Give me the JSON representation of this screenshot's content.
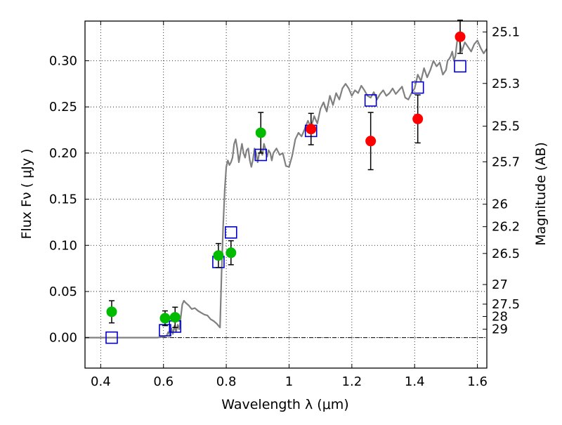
{
  "chart_data": {
    "type": "scatter",
    "x_axis": {
      "label": "Wavelength  λ (μm)",
      "range": [
        0.35,
        1.63
      ],
      "ticks": [
        0.4,
        0.6,
        0.8,
        1.0,
        1.2,
        1.4,
        1.6
      ],
      "tick_labels": [
        "0.4",
        "0.6",
        "0.8",
        "1",
        "1.2",
        "1.4",
        "1.6"
      ]
    },
    "y_axis": {
      "label": "Flux  Fν  ( μJy )",
      "range": [
        -0.033,
        0.343
      ],
      "ticks": [
        0.0,
        0.05,
        0.1,
        0.15,
        0.2,
        0.25,
        0.3
      ],
      "tick_labels": [
        "0.00",
        "0.05",
        "0.10",
        "0.15",
        "0.20",
        "0.25",
        "0.30"
      ]
    },
    "y2_axis": {
      "label": "Magnitude (AB)",
      "scale": "AB magnitude of flux",
      "ticks": [
        25.1,
        25.3,
        25.5,
        25.7,
        26,
        26.2,
        26.5,
        27,
        27.5,
        28,
        29
      ],
      "tick_labels": [
        "25.1",
        "25.3",
        "25.5",
        "25.7",
        "26",
        "26.2",
        "26.5",
        "27",
        "27.5",
        "28",
        "29"
      ]
    },
    "grid": true,
    "zero_line": true,
    "colors": {
      "green": "#00bb00",
      "red": "#ff0000",
      "model_squares": "#0000cc",
      "spectrum": "#808080",
      "error_bars": "#000000"
    },
    "spectrum": {
      "x": [
        0.35,
        0.58,
        0.6,
        0.61,
        0.615,
        0.62,
        0.625,
        0.63,
        0.635,
        0.64,
        0.645,
        0.65,
        0.655,
        0.66,
        0.665,
        0.67,
        0.68,
        0.69,
        0.7,
        0.71,
        0.72,
        0.73,
        0.74,
        0.75,
        0.76,
        0.77,
        0.775,
        0.78,
        0.785,
        0.79,
        0.795,
        0.8,
        0.805,
        0.81,
        0.815,
        0.82,
        0.825,
        0.83,
        0.835,
        0.84,
        0.845,
        0.85,
        0.855,
        0.86,
        0.865,
        0.87,
        0.875,
        0.88,
        0.885,
        0.89,
        0.895,
        0.9,
        0.905,
        0.91,
        0.915,
        0.92,
        0.925,
        0.93,
        0.935,
        0.94,
        0.945,
        0.95,
        0.96,
        0.97,
        0.98,
        0.99,
        1.0,
        1.01,
        1.02,
        1.03,
        1.04,
        1.05,
        1.06,
        1.07,
        1.08,
        1.09,
        1.1,
        1.11,
        1.12,
        1.13,
        1.14,
        1.15,
        1.16,
        1.17,
        1.18,
        1.19,
        1.2,
        1.21,
        1.22,
        1.23,
        1.24,
        1.25,
        1.26,
        1.27,
        1.28,
        1.29,
        1.3,
        1.31,
        1.32,
        1.33,
        1.34,
        1.35,
        1.36,
        1.37,
        1.38,
        1.39,
        1.4,
        1.41,
        1.42,
        1.43,
        1.44,
        1.45,
        1.46,
        1.47,
        1.48,
        1.49,
        1.5,
        1.505,
        1.51,
        1.515,
        1.52,
        1.525,
        1.53,
        1.535,
        1.54,
        1.545,
        1.55,
        1.56,
        1.57,
        1.58,
        1.59,
        1.6,
        1.61,
        1.62,
        1.63
      ],
      "y": [
        0.0,
        0.0,
        0.001,
        0.002,
        0.006,
        0.003,
        0.01,
        0.004,
        0.013,
        0.006,
        0.014,
        0.009,
        0.022,
        0.036,
        0.04,
        0.038,
        0.035,
        0.031,
        0.032,
        0.029,
        0.027,
        0.025,
        0.024,
        0.02,
        0.018,
        0.015,
        0.013,
        0.011,
        0.07,
        0.12,
        0.16,
        0.185,
        0.192,
        0.187,
        0.19,
        0.195,
        0.21,
        0.215,
        0.205,
        0.19,
        0.2,
        0.21,
        0.2,
        0.195,
        0.203,
        0.205,
        0.192,
        0.185,
        0.193,
        0.205,
        0.2,
        0.19,
        0.2,
        0.203,
        0.198,
        0.21,
        0.204,
        0.196,
        0.203,
        0.2,
        0.192,
        0.2,
        0.205,
        0.198,
        0.2,
        0.186,
        0.185,
        0.197,
        0.215,
        0.222,
        0.218,
        0.226,
        0.235,
        0.228,
        0.24,
        0.232,
        0.248,
        0.255,
        0.245,
        0.262,
        0.252,
        0.265,
        0.258,
        0.27,
        0.275,
        0.27,
        0.262,
        0.268,
        0.265,
        0.273,
        0.268,
        0.262,
        0.26,
        0.266,
        0.258,
        0.264,
        0.268,
        0.262,
        0.265,
        0.27,
        0.264,
        0.268,
        0.272,
        0.26,
        0.258,
        0.265,
        0.27,
        0.285,
        0.278,
        0.292,
        0.282,
        0.29,
        0.3,
        0.294,
        0.298,
        0.285,
        0.29,
        0.3,
        0.302,
        0.305,
        0.31,
        0.3,
        0.305,
        0.32,
        0.33,
        0.318,
        0.31,
        0.32,
        0.315,
        0.31,
        0.318,
        0.322,
        0.314,
        0.308,
        0.313
      ]
    },
    "model_squares": {
      "x": [
        0.435,
        0.605,
        0.637,
        0.775,
        0.815,
        0.91,
        1.07,
        1.26,
        1.41,
        1.545
      ],
      "y": [
        0.0,
        0.008,
        0.012,
        0.082,
        0.114,
        0.198,
        0.224,
        0.257,
        0.271,
        0.294
      ]
    },
    "series": [
      {
        "color": "green",
        "x": [
          0.435,
          0.605,
          0.637,
          0.775,
          0.815,
          0.91
        ],
        "y": [
          0.028,
          0.021,
          0.022,
          0.089,
          0.092,
          0.222
        ],
        "y_err": [
          0.012,
          0.008,
          0.011,
          0.013,
          0.013,
          0.022
        ]
      },
      {
        "color": "red",
        "x": [
          1.07,
          1.26,
          1.41,
          1.545
        ],
        "y": [
          0.226,
          0.213,
          0.237,
          0.326
        ],
        "y_err": [
          0.017,
          0.031,
          0.026,
          0.018
        ]
      }
    ]
  }
}
